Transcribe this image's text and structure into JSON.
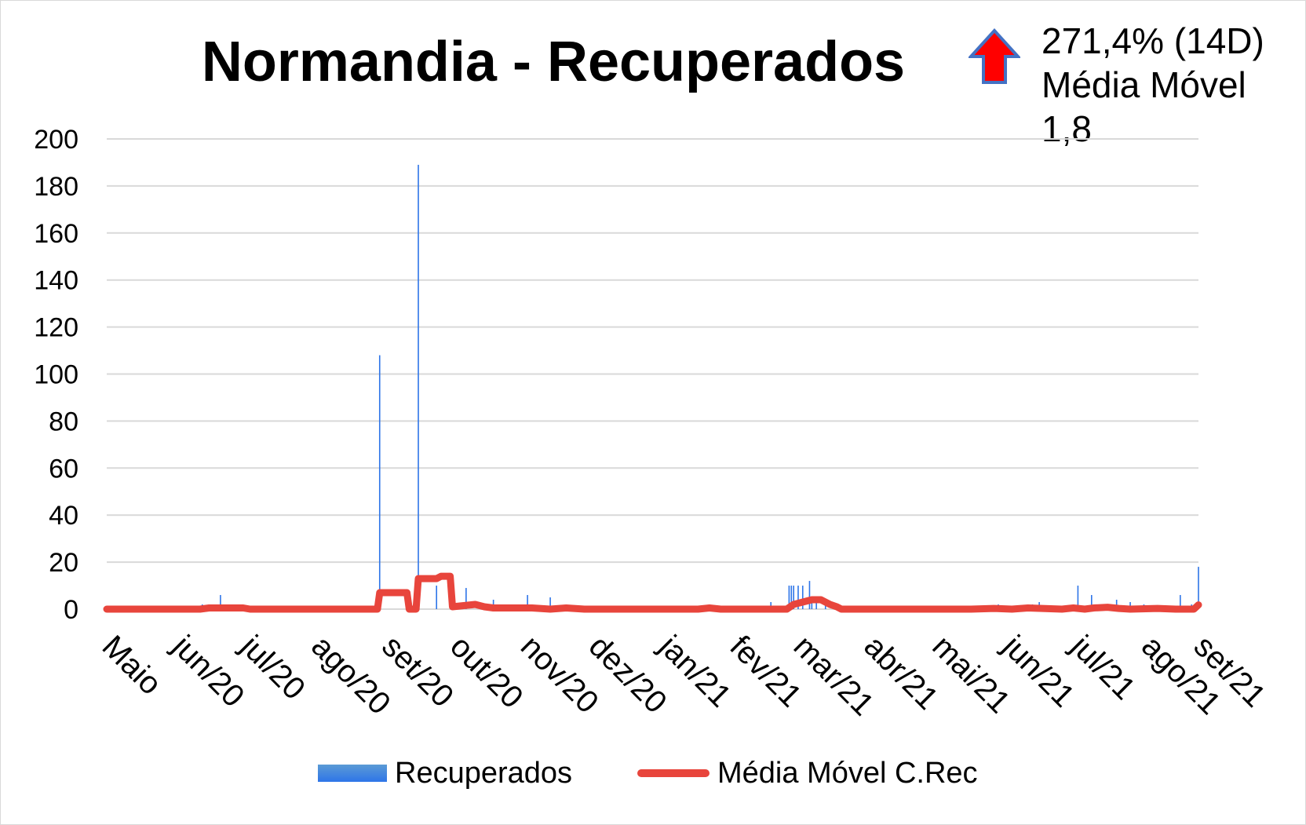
{
  "title": "Normandia - Recuperados",
  "annotation": {
    "line1": "271,4% (14D)",
    "line2": "Média Móvel",
    "line3": "1,8",
    "trend": "up",
    "arrow_fill": "#ff0000",
    "arrow_stroke": "#4472c4"
  },
  "legend": {
    "bars_label": "Recuperados",
    "line_label": "Média Móvel C.Rec"
  },
  "chart_data": {
    "type": "bar",
    "title": "Normandia - Recuperados",
    "ylim": [
      0,
      200
    ],
    "yticks": [
      0,
      20,
      40,
      60,
      80,
      100,
      120,
      140,
      160,
      180,
      200
    ],
    "grid": true,
    "legend_position": "bottom",
    "x_domain": [
      0,
      480
    ],
    "categories": [
      "Maio",
      "jun/20",
      "jul/20",
      "ago/20",
      "set/20",
      "out/20",
      "nov/20",
      "dez/20",
      "jan/21",
      "fev/21",
      "mar/21",
      "abr/21",
      "mai/21",
      "jun/21",
      "jul/21",
      "ago/21",
      "set/21"
    ],
    "category_x": [
      0,
      31,
      61,
      92,
      123,
      153,
      184,
      214,
      245,
      276,
      304,
      335,
      365,
      396,
      426,
      457,
      480
    ],
    "series": [
      {
        "name": "Recuperados",
        "kind": "bar",
        "color": "#2e75e8",
        "points": [
          [
            42,
            2
          ],
          [
            50,
            6
          ],
          [
            52,
            2
          ],
          [
            120,
            108
          ],
          [
            137,
            189
          ],
          [
            145,
            10
          ],
          [
            158,
            9
          ],
          [
            170,
            4
          ],
          [
            180,
            2
          ],
          [
            185,
            6
          ],
          [
            195,
            5
          ],
          [
            292,
            3
          ],
          [
            300,
            10
          ],
          [
            301,
            10
          ],
          [
            302,
            10
          ],
          [
            304,
            10
          ],
          [
            306,
            10
          ],
          [
            309,
            12
          ],
          [
            310,
            4
          ],
          [
            312,
            3
          ],
          [
            316,
            2
          ],
          [
            392,
            2
          ],
          [
            407,
            2
          ],
          [
            410,
            3
          ],
          [
            427,
            10
          ],
          [
            433,
            6
          ],
          [
            444,
            4
          ],
          [
            450,
            3
          ],
          [
            456,
            2
          ],
          [
            472,
            6
          ],
          [
            477,
            2
          ],
          [
            480,
            18
          ]
        ]
      },
      {
        "name": "Média Móvel C.Rec",
        "kind": "line",
        "color": "#e8453c",
        "points": [
          [
            0,
            0
          ],
          [
            41,
            0
          ],
          [
            45,
            0.5
          ],
          [
            60,
            0.5
          ],
          [
            63,
            0
          ],
          [
            119,
            0
          ],
          [
            120,
            7
          ],
          [
            132,
            7
          ],
          [
            133,
            0
          ],
          [
            136,
            0
          ],
          [
            137,
            13
          ],
          [
            145,
            13
          ],
          [
            147,
            14
          ],
          [
            151,
            14
          ],
          [
            152,
            1
          ],
          [
            157,
            1.5
          ],
          [
            162,
            2
          ],
          [
            166,
            1
          ],
          [
            170,
            0.5
          ],
          [
            180,
            0.5
          ],
          [
            187,
            0.5
          ],
          [
            195,
            0
          ],
          [
            202,
            0.5
          ],
          [
            210,
            0
          ],
          [
            260,
            0
          ],
          [
            265,
            0.5
          ],
          [
            270,
            0
          ],
          [
            299,
            0
          ],
          [
            302,
            2
          ],
          [
            306,
            3
          ],
          [
            310,
            4
          ],
          [
            314,
            4
          ],
          [
            318,
            2
          ],
          [
            321,
            1
          ],
          [
            323,
            0
          ],
          [
            380,
            0
          ],
          [
            390,
            0.3
          ],
          [
            398,
            0
          ],
          [
            405,
            0.5
          ],
          [
            420,
            0
          ],
          [
            425,
            0.5
          ],
          [
            430,
            0
          ],
          [
            434,
            0.5
          ],
          [
            440,
            0.8
          ],
          [
            445,
            0.3
          ],
          [
            450,
            0
          ],
          [
            462,
            0.3
          ],
          [
            470,
            0
          ],
          [
            478,
            0
          ],
          [
            480,
            1.8
          ]
        ]
      }
    ]
  }
}
